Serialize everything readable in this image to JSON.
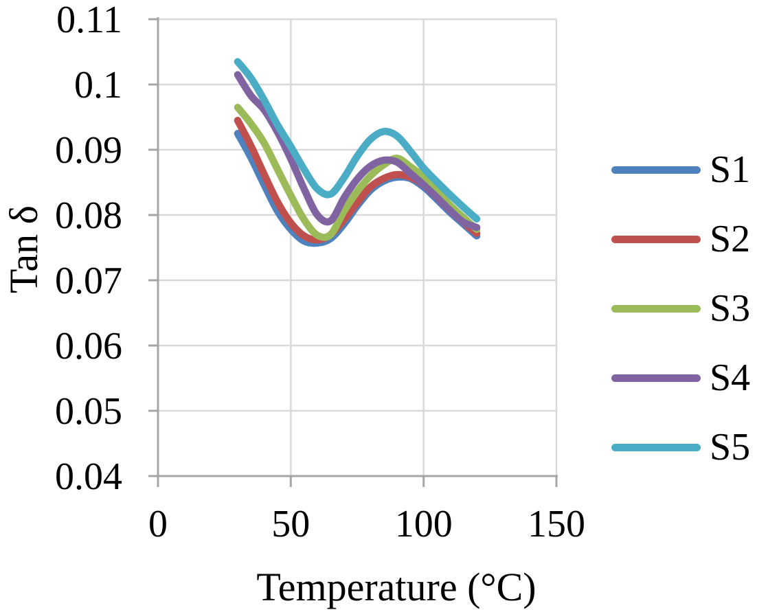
{
  "figure": {
    "background": "#FFFFFF"
  },
  "chart_data": {
    "type": "line",
    "title": "",
    "xlabel": "Temperature (°C)",
    "ylabel": "Tan δ",
    "xlim": [
      0,
      150
    ],
    "ylim": [
      0.04,
      0.11
    ],
    "grid": true,
    "xticks": {
      "values": [
        0,
        50,
        100,
        150
      ],
      "labels": [
        "0",
        "50",
        "100",
        "150"
      ]
    },
    "yticks": {
      "values": [
        0.04,
        0.05,
        0.06,
        0.07,
        0.08,
        0.09,
        0.1,
        0.11
      ],
      "labels": [
        "0.04",
        "0.05",
        "0.06",
        "0.07",
        "0.08",
        "0.09",
        "0.1",
        "0.11"
      ]
    },
    "legend": {
      "position": "right",
      "entries": [
        "S1",
        "S2",
        "S3",
        "S4",
        "S5"
      ]
    },
    "x": [
      30,
      35,
      40,
      45,
      50,
      55,
      60,
      65,
      70,
      75,
      80,
      85,
      90,
      95,
      100,
      105,
      110,
      115,
      120
    ],
    "series": [
      {
        "name": "S1",
        "color": "#4F81BD",
        "values": [
          0.0925,
          0.0888,
          0.0846,
          0.0806,
          0.0778,
          0.076,
          0.0757,
          0.0764,
          0.0786,
          0.0814,
          0.0838,
          0.0852,
          0.0858,
          0.0856,
          0.0843,
          0.0824,
          0.0804,
          0.0786,
          0.0768
        ]
      },
      {
        "name": "S2",
        "color": "#C0504D",
        "values": [
          0.0945,
          0.0906,
          0.0862,
          0.082,
          0.0788,
          0.0768,
          0.0762,
          0.077,
          0.0793,
          0.0819,
          0.0843,
          0.0856,
          0.0862,
          0.0858,
          0.0846,
          0.0827,
          0.0807,
          0.0789,
          0.0772
        ]
      },
      {
        "name": "S3",
        "color": "#9BBB59",
        "values": [
          0.0965,
          0.094,
          0.091,
          0.087,
          0.083,
          0.0793,
          0.0769,
          0.077,
          0.0806,
          0.0836,
          0.086,
          0.0877,
          0.0887,
          0.0874,
          0.0858,
          0.0837,
          0.0815,
          0.0796,
          0.0778
        ]
      },
      {
        "name": "S4",
        "color": "#8064A2",
        "values": [
          0.1015,
          0.0983,
          0.0961,
          0.0927,
          0.0886,
          0.084,
          0.08,
          0.0791,
          0.0826,
          0.0855,
          0.0875,
          0.0884,
          0.0881,
          0.0864,
          0.0846,
          0.0827,
          0.0807,
          0.0789,
          0.0781
        ]
      },
      {
        "name": "S5",
        "color": "#4BACC6",
        "values": [
          0.1035,
          0.101,
          0.0976,
          0.0938,
          0.0905,
          0.087,
          0.084,
          0.0832,
          0.0857,
          0.089,
          0.0916,
          0.0928,
          0.0921,
          0.0898,
          0.0872,
          0.0851,
          0.0831,
          0.0812,
          0.0794
        ]
      }
    ],
    "styles": {
      "gridline_color": "#D9D9D9",
      "axis_color": "#A6A6A6",
      "text_color": "#000000",
      "line_width": 10.5
    }
  }
}
